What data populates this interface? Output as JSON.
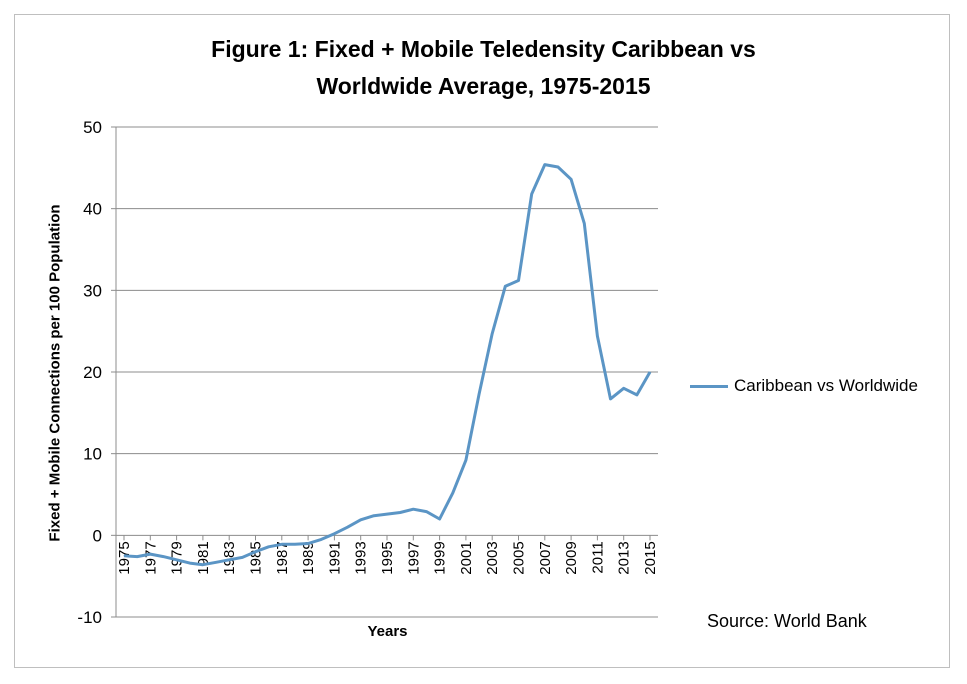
{
  "chart_data": {
    "type": "line",
    "title_line1": "Figure 1: Fixed + Mobile Teledensity Caribbean vs",
    "title_line2": "Worldwide Average, 1975-2015",
    "xlabel": "Years",
    "ylabel": "Fixed + Mobile Connections per 100 Population",
    "ylim": [
      -10,
      50
    ],
    "yticks": [
      "50",
      "40",
      "30",
      "20",
      "10",
      "0",
      "-10"
    ],
    "ytick_values": [
      50,
      40,
      30,
      20,
      10,
      0,
      -10
    ],
    "xtick_labels": [
      "1975",
      "1977",
      "1979",
      "1981",
      "1983",
      "1985",
      "1987",
      "1989",
      "1991",
      "1993",
      "1995",
      "1997",
      "1999",
      "2001",
      "2003",
      "2005",
      "2007",
      "2009",
      "2011",
      "2013",
      "2015"
    ],
    "x": [
      1975,
      1976,
      1977,
      1978,
      1979,
      1980,
      1981,
      1982,
      1983,
      1984,
      1985,
      1986,
      1987,
      1988,
      1989,
      1990,
      1991,
      1992,
      1993,
      1994,
      1995,
      1996,
      1997,
      1998,
      1999,
      2000,
      2001,
      2002,
      2003,
      2004,
      2005,
      2006,
      2007,
      2008,
      2009,
      2010,
      2011,
      2012,
      2013,
      2014,
      2015
    ],
    "series": [
      {
        "name": "Caribbean vs Worldwide",
        "color": "#5b95c5",
        "values": [
          -2.5,
          -2.6,
          -2.3,
          -2.6,
          -3.0,
          -3.4,
          -3.6,
          -3.3,
          -3.0,
          -2.7,
          -2.0,
          -1.4,
          -1.1,
          -1.1,
          -1.0,
          -0.5,
          0.2,
          1.0,
          1.9,
          2.4,
          2.6,
          2.8,
          3.2,
          2.9,
          2.0,
          5.2,
          9.2,
          17.3,
          24.7,
          30.5,
          31.2,
          41.8,
          45.4,
          45.1,
          43.6,
          38.2,
          24.4,
          16.7,
          18.0,
          17.2,
          20.0
        ]
      }
    ],
    "grid": true,
    "legend": "right",
    "source": "Source: World Bank"
  }
}
